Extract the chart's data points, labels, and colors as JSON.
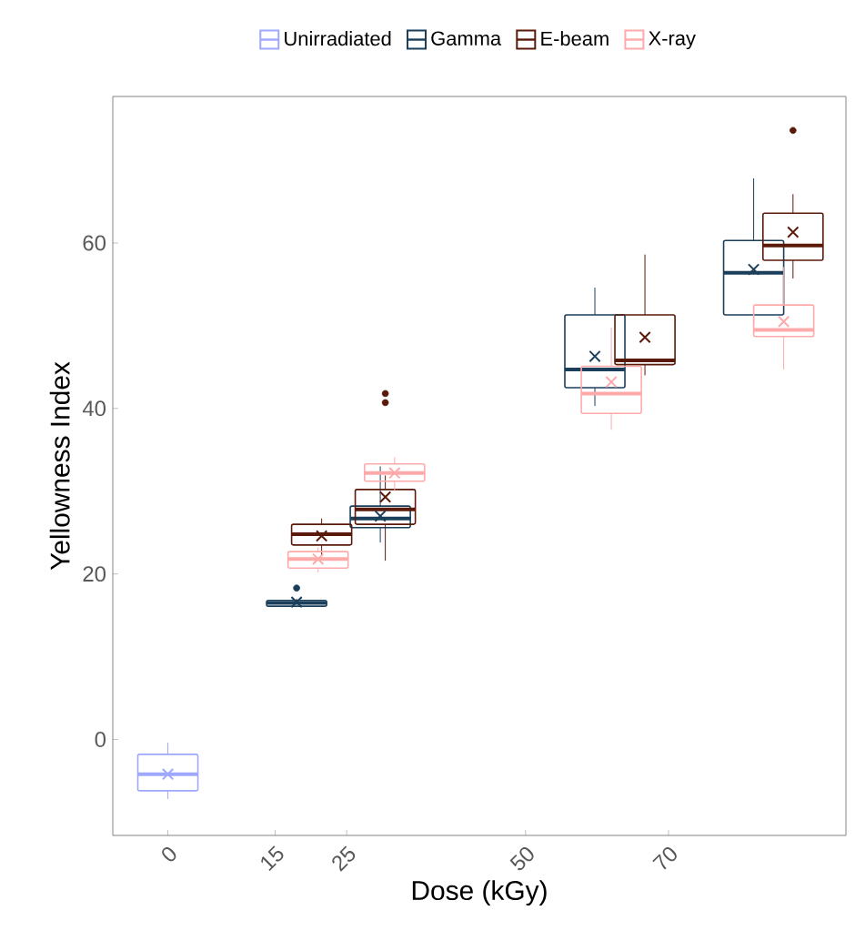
{
  "chart_data": {
    "type": "box",
    "xlabel": "Dose (kGy)",
    "ylabel": "Yellowness Index",
    "xlim": [
      -7.7,
      94.8
    ],
    "ylim": [
      -11.6,
      77.7
    ],
    "xticks": [
      0,
      15,
      25,
      50,
      70
    ],
    "yticks": [
      0,
      20,
      40,
      60
    ],
    "grid": false,
    "legend": "top",
    "marker": "cross",
    "series": [
      {
        "name": "Unirradiated",
        "color": "#9fa8ff",
        "x": [
          0
        ],
        "boxes": [
          {
            "low": -7.2,
            "q1": -6.2,
            "median": -4.2,
            "q3": -1.8,
            "high": -0.4,
            "mean": -4.2
          }
        ]
      },
      {
        "name": "Gamma",
        "color": "#1b3f5a",
        "x": [
          18,
          29.7,
          59.7,
          81.9
        ],
        "boxes": [
          {
            "low": 16.0,
            "q1": 16.1,
            "median": 16.5,
            "q3": 16.8,
            "high": 17.0,
            "mean": 16.6,
            "outliers": [
              18.3
            ]
          },
          {
            "low": 23.8,
            "q1": 25.6,
            "median": 26.7,
            "q3": 28.2,
            "high": 33.0,
            "mean": 27.0
          },
          {
            "low": 40.3,
            "q1": 42.5,
            "median": 44.7,
            "q3": 51.3,
            "high": 54.6,
            "mean": 46.3
          },
          {
            "low": 50.2,
            "q1": 51.3,
            "median": 56.4,
            "q3": 60.3,
            "high": 67.8,
            "mean": 56.8
          }
        ]
      },
      {
        "name": "E-beam",
        "color": "#5a1a0a",
        "x": [
          21.5,
          30.4,
          66.7,
          87.4
        ],
        "boxes": [
          {
            "low": 22.3,
            "q1": 23.5,
            "median": 24.8,
            "q3": 26.0,
            "high": 26.7,
            "mean": 24.6
          },
          {
            "low": 21.6,
            "q1": 26.0,
            "median": 27.8,
            "q3": 30.2,
            "high": 31.9,
            "mean": 29.3,
            "outliers": [
              40.7,
              41.8
            ]
          },
          {
            "low": 44.0,
            "q1": 45.3,
            "median": 45.8,
            "q3": 51.3,
            "high": 58.6,
            "mean": 48.6
          },
          {
            "low": 55.7,
            "q1": 57.9,
            "median": 59.7,
            "q3": 63.6,
            "high": 65.9,
            "mean": 61.3,
            "outliers": [
              73.6
            ]
          }
        ]
      },
      {
        "name": "X-ray",
        "color": "#ffaaaa",
        "x": [
          21,
          31.7,
          62,
          86.1
        ],
        "boxes": [
          {
            "low": 20.2,
            "q1": 20.7,
            "median": 21.8,
            "q3": 22.7,
            "high": 23.2,
            "mean": 21.8
          },
          {
            "low": 30.0,
            "q1": 31.2,
            "median": 32.2,
            "q3": 33.3,
            "high": 34.1,
            "mean": 32.2
          },
          {
            "low": 37.4,
            "q1": 39.4,
            "median": 41.8,
            "q3": 45.1,
            "high": 49.8,
            "mean": 43.2
          },
          {
            "low": 44.7,
            "q1": 48.7,
            "median": 49.5,
            "q3": 52.5,
            "high": 57.1,
            "mean": 50.5
          }
        ]
      }
    ]
  }
}
